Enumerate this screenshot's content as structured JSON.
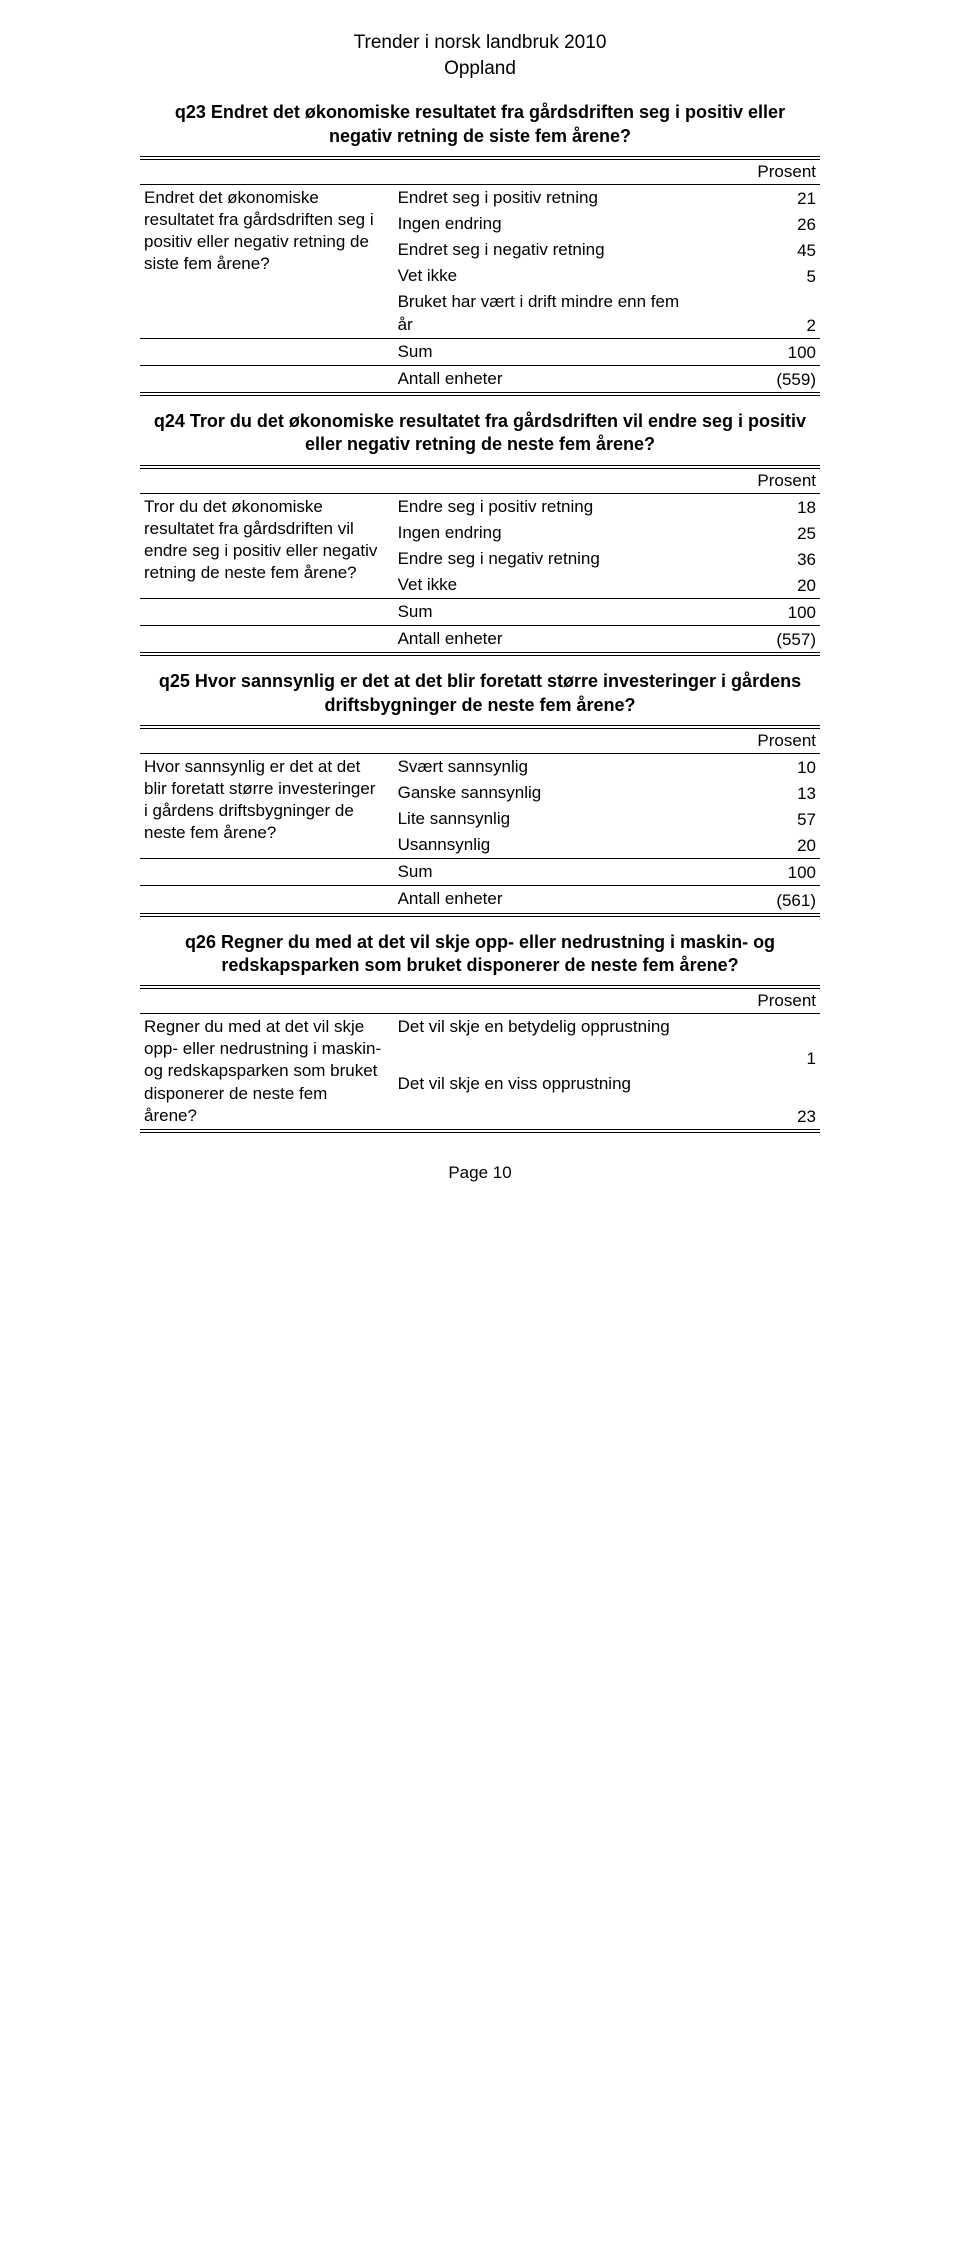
{
  "header": {
    "line1": "Trender i norsk landbruk 2010",
    "line2": "Oppland"
  },
  "prosent_label": "Prosent",
  "sum_label": "Sum",
  "antall_label": "Antall enheter",
  "page_label": "Page 10",
  "q23": {
    "title": "q23 Endret det økonomiske resultatet fra gårdsdriften seg i positiv eller negativ retning de siste fem årene?",
    "left": "Endret det økonomiske resultatet fra gårdsdriften seg i positiv eller negativ retning de siste fem årene?",
    "rows": [
      {
        "label": "Endret seg i positiv retning",
        "val": "21"
      },
      {
        "label": "Ingen endring",
        "val": "26"
      },
      {
        "label": "Endret seg i negativ retning",
        "val": "45"
      },
      {
        "label": "Vet ikke",
        "val": "5"
      },
      {
        "label": "Bruket har vært i drift mindre enn fem år",
        "val": "2"
      }
    ],
    "sum": "100",
    "antall": "(559)"
  },
  "q24": {
    "title": "q24 Tror du det økonomiske resultatet fra gårdsdriften vil endre seg i positiv eller negativ retning de neste fem årene?",
    "left": "Tror du det økonomiske resultatet fra gårdsdriften vil endre seg i positiv eller negativ retning de neste fem årene?",
    "rows": [
      {
        "label": "Endre seg i positiv retning",
        "val": "18"
      },
      {
        "label": "Ingen endring",
        "val": "25"
      },
      {
        "label": "Endre seg i negativ retning",
        "val": "36"
      },
      {
        "label": "Vet ikke",
        "val": "20"
      }
    ],
    "sum": "100",
    "antall": "(557)"
  },
  "q25": {
    "title": "q25 Hvor sannsynlig er det at det blir foretatt større investeringer i gårdens driftsbygninger de neste fem årene?",
    "left": "Hvor sannsynlig er det at det blir foretatt større investeringer i gårdens driftsbygninger de neste fem årene?",
    "rows": [
      {
        "label": "Svært sannsynlig",
        "val": "10"
      },
      {
        "label": "Ganske sannsynlig",
        "val": "13"
      },
      {
        "label": "Lite sannsynlig",
        "val": "57"
      },
      {
        "label": "Usannsynlig",
        "val": "20"
      }
    ],
    "sum": "100",
    "antall": "(561)"
  },
  "q26": {
    "title": "q26 Regner du med at det vil skje opp- eller nedrustning i maskin- og redskapsparken som bruket disponerer de neste fem årene?",
    "left": "Regner du med at det vil skje opp- eller nedrustning i maskin- og redskapsparken som bruket disponerer de neste fem årene?",
    "rows": [
      {
        "label": "Det vil skje en betydelig opprustning",
        "val": "1"
      },
      {
        "label": "Det vil skje en viss opprustning",
        "val": "23"
      }
    ]
  }
}
